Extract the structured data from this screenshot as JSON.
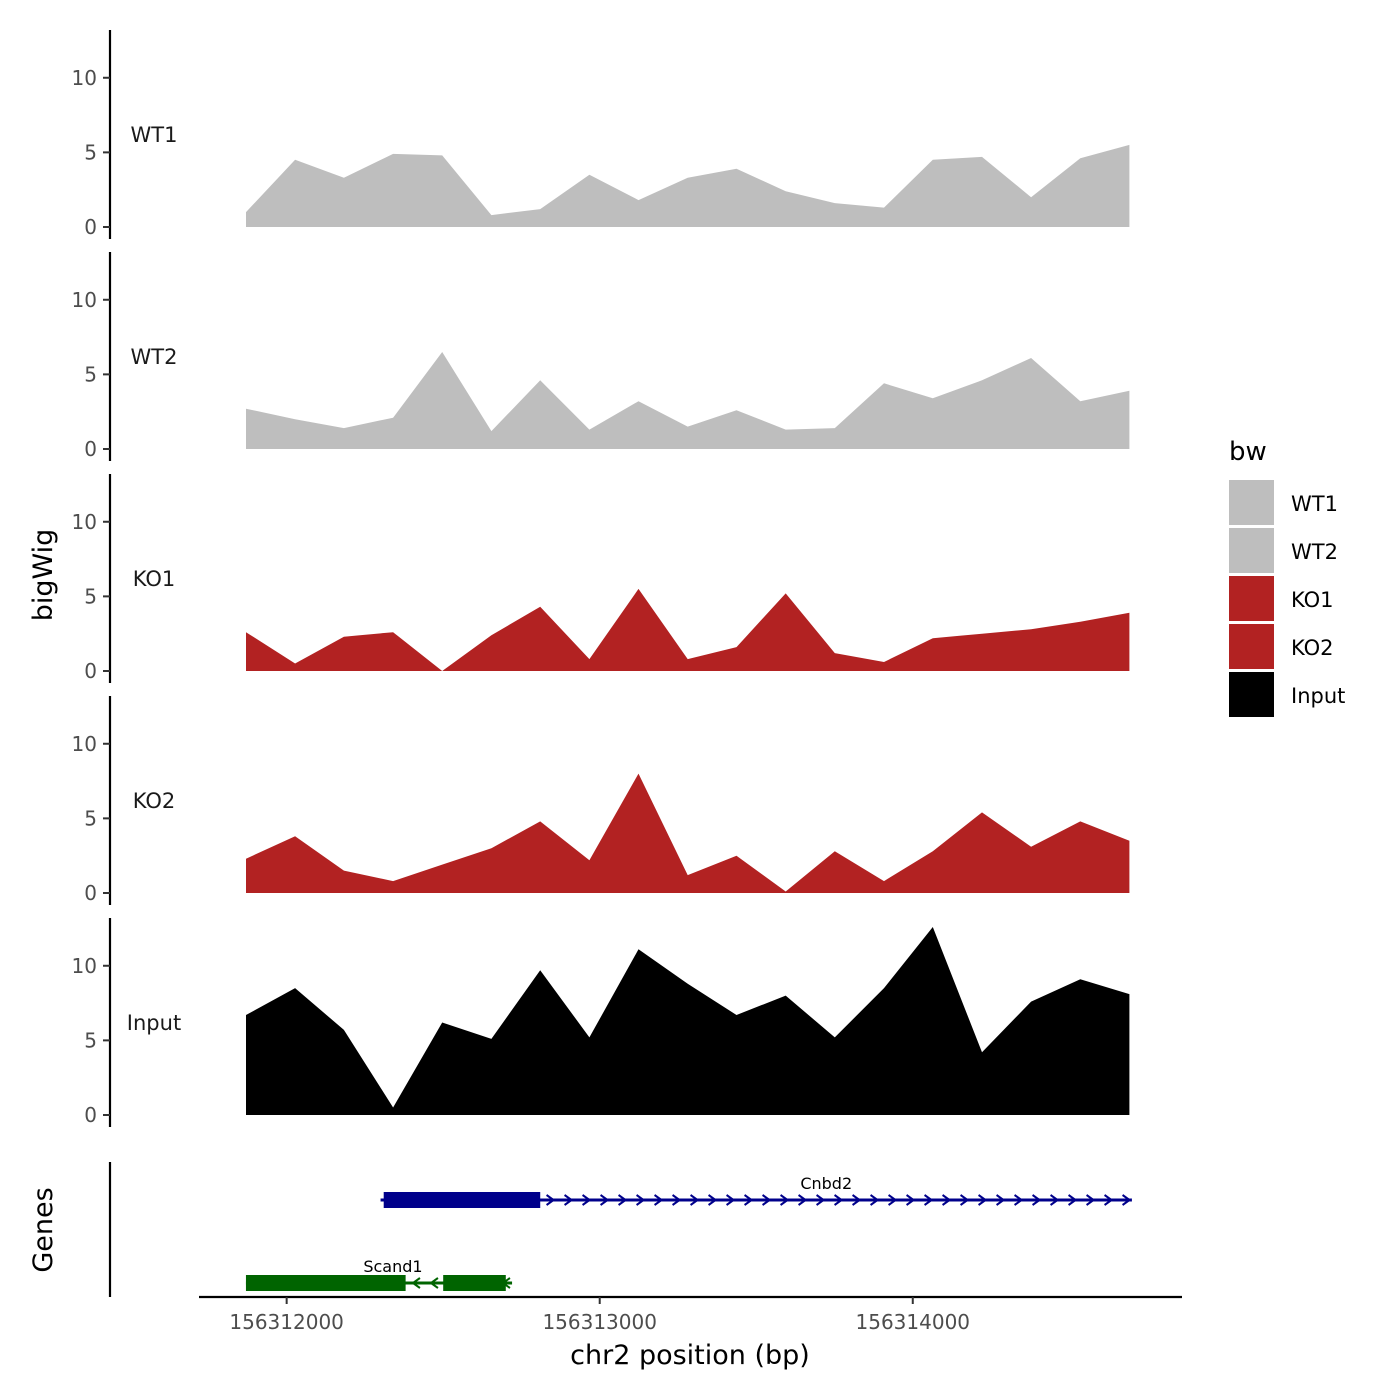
{
  "chart_data": {
    "type": "area",
    "region": "chr2",
    "xlabel": "chr2 position (bp)",
    "ylabel": "bigWig",
    "genes_label": "Genes",
    "xlim": [
      156311720,
      156314860
    ],
    "ylim": [
      0,
      13.2
    ],
    "x_ticks": [
      156312000,
      156313000,
      156314000
    ],
    "x_tick_labels": [
      "156312000",
      "156313000",
      "156314000"
    ],
    "y_ticks": [
      0,
      5,
      10
    ],
    "y_tick_labels": [
      "0",
      "5",
      "10"
    ],
    "legend": {
      "title": "bw",
      "items": [
        {
          "label": "WT1",
          "color": "#bebebe"
        },
        {
          "label": "WT2",
          "color": "#bebebe"
        },
        {
          "label": "KO1",
          "color": "#b22222"
        },
        {
          "label": "KO2",
          "color": "#b22222"
        },
        {
          "label": "Input",
          "color": "#000000"
        }
      ]
    },
    "track_x": [
      156311870,
      156312027,
      156312183,
      156312340,
      156312497,
      156312654,
      156312810,
      156312967,
      156313124,
      156313281,
      156313437,
      156313594,
      156313751,
      156313908,
      156314064,
      156314221,
      156314378,
      156314535,
      156314692
    ],
    "tracks": [
      {
        "name": "WT1",
        "color": "#bebebe",
        "values": [
          1.0,
          4.5,
          3.3,
          4.9,
          4.8,
          0.8,
          1.2,
          3.5,
          1.8,
          3.3,
          3.9,
          2.4,
          1.6,
          1.3,
          4.5,
          4.7,
          2.0,
          4.6,
          5.5
        ]
      },
      {
        "name": "WT2",
        "color": "#bebebe",
        "values": [
          2.7,
          2.0,
          1.4,
          2.1,
          6.5,
          1.2,
          4.6,
          1.3,
          3.2,
          1.5,
          2.6,
          1.3,
          1.4,
          4.4,
          3.4,
          4.6,
          6.1,
          3.2,
          3.9
        ]
      },
      {
        "name": "KO1",
        "color": "#b22222",
        "values": [
          2.6,
          0.5,
          2.3,
          2.6,
          0.0,
          2.4,
          4.3,
          0.8,
          5.5,
          0.8,
          1.6,
          5.2,
          1.2,
          0.6,
          2.2,
          2.5,
          2.8,
          3.3,
          3.9
        ]
      },
      {
        "name": "KO2",
        "color": "#b22222",
        "values": [
          2.3,
          3.8,
          1.5,
          0.8,
          1.9,
          3.0,
          4.8,
          2.2,
          8.0,
          1.2,
          2.5,
          0.1,
          2.8,
          0.8,
          2.8,
          5.4,
          3.1,
          4.8,
          3.5
        ]
      },
      {
        "name": "Input",
        "color": "#000000",
        "values": [
          6.7,
          8.5,
          5.7,
          0.5,
          6.2,
          5.1,
          9.7,
          5.2,
          11.1,
          8.8,
          6.7,
          8.0,
          5.2,
          8.5,
          12.6,
          4.2,
          7.6,
          9.1,
          8.1
        ]
      }
    ],
    "genes": [
      {
        "name": "Cnbd2",
        "strand": "+",
        "color": "#00008b",
        "start": 156312300,
        "end": 156314700,
        "exons": [
          [
            156312310,
            156312810
          ]
        ]
      },
      {
        "name": "Scand1",
        "strand": "-",
        "color": "#006400",
        "start": 156311870,
        "end": 156312720,
        "exons": [
          [
            156311870,
            156312380
          ],
          [
            156312500,
            156312700
          ]
        ]
      }
    ]
  }
}
